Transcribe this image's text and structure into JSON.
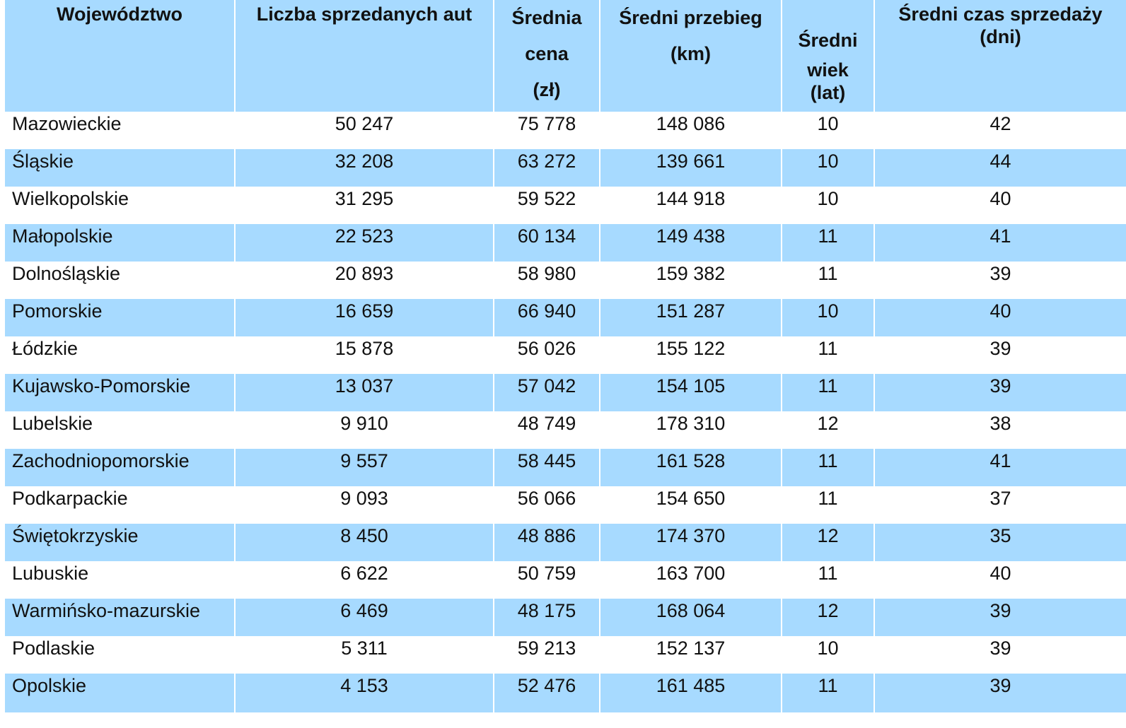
{
  "table": {
    "headers": {
      "region": "Województwo",
      "count": "Liczba sprzedanych aut",
      "price": "Średnia\ncena\n(zł)",
      "mileage": "Średni przebieg\n(km)",
      "age_line1": "Średni",
      "age_line2": "wiek\n(lat)",
      "sale_time": "Średni czas sprzedaży\n(dni)"
    },
    "rows": [
      {
        "region": "Mazowieckie",
        "count": "50 247",
        "price": "75 778",
        "mileage": "148 086",
        "age": "10",
        "days": "42"
      },
      {
        "region": "Śląskie",
        "count": "32 208",
        "price": "63 272",
        "mileage": "139 661",
        "age": "10",
        "days": "44"
      },
      {
        "region": "Wielkopolskie",
        "count": "31 295",
        "price": "59 522",
        "mileage": "144 918",
        "age": "10",
        "days": "40"
      },
      {
        "region": "Małopolskie",
        "count": "22 523",
        "price": "60 134",
        "mileage": "149 438",
        "age": "11",
        "days": "41"
      },
      {
        "region": "Dolnośląskie",
        "count": "20 893",
        "price": "58 980",
        "mileage": "159 382",
        "age": "11",
        "days": "39"
      },
      {
        "region": "Pomorskie",
        "count": "16 659",
        "price": "66 940",
        "mileage": "151 287",
        "age": "10",
        "days": "40"
      },
      {
        "region": "Łódzkie",
        "count": "15 878",
        "price": "56 026",
        "mileage": "155 122",
        "age": "11",
        "days": "39"
      },
      {
        "region": "Kujawsko-Pomorskie",
        "count": "13 037",
        "price": "57 042",
        "mileage": "154 105",
        "age": "11",
        "days": "39"
      },
      {
        "region": "Lubelskie",
        "count": "9 910",
        "price": "48 749",
        "mileage": "178 310",
        "age": "12",
        "days": "38"
      },
      {
        "region": "Zachodniopomorskie",
        "count": "9 557",
        "price": "58 445",
        "mileage": "161 528",
        "age": "11",
        "days": "41"
      },
      {
        "region": "Podkarpackie",
        "count": "9 093",
        "price": "56 066",
        "mileage": "154 650",
        "age": "11",
        "days": "37"
      },
      {
        "region": "Świętokrzyskie",
        "count": "8 450",
        "price": "48 886",
        "mileage": "174 370",
        "age": "12",
        "days": "35"
      },
      {
        "region": "Lubuskie",
        "count": "6 622",
        "price": "50 759",
        "mileage": "163 700",
        "age": "11",
        "days": "40"
      },
      {
        "region": "Warmińsko-mazurskie",
        "count": "6 469",
        "price": "48 175",
        "mileage": "168 064",
        "age": "12",
        "days": "39"
      },
      {
        "region": "Podlaskie",
        "count": "5 311",
        "price": "59 213",
        "mileage": "152 137",
        "age": "10",
        "days": "39"
      },
      {
        "region": "Opolskie",
        "count": "4 153",
        "price": "52 476",
        "mileage": "161 485",
        "age": "11",
        "days": "39"
      }
    ]
  }
}
